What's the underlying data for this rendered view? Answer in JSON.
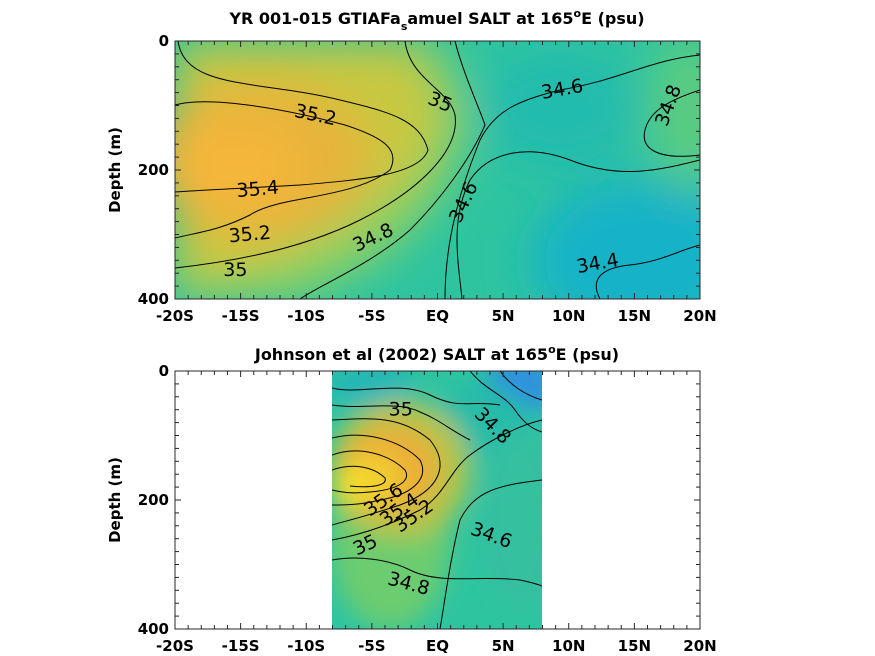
{
  "chart_data": [
    {
      "type": "contour",
      "title_main": "YR 001-015 GTIAFa",
      "title_sub": "s",
      "title_rest": "amuel SALT at 165",
      "title_sup": "o",
      "title_end": "E (psu)",
      "ylabel": "Depth (m)",
      "xlim": [
        -20,
        20
      ],
      "ylim": [
        0,
        400
      ],
      "y_reversed": true,
      "x_ticks": [
        {
          "v": -20,
          "label": "-20S"
        },
        {
          "v": -15,
          "label": "-15S"
        },
        {
          "v": -10,
          "label": "-10S"
        },
        {
          "v": -5,
          "label": "-5S"
        },
        {
          "v": 0,
          "label": "EQ"
        },
        {
          "v": 5,
          "label": "5N"
        },
        {
          "v": 10,
          "label": "10N"
        },
        {
          "v": 15,
          "label": "15N"
        },
        {
          "v": 20,
          "label": "20N"
        }
      ],
      "y_ticks": [
        {
          "v": 0,
          "label": "0"
        },
        {
          "v": 200,
          "label": "200"
        },
        {
          "v": 400,
          "label": "400"
        }
      ],
      "data_xrange": [
        -20,
        20
      ],
      "contour_labels": [
        {
          "text": "35.2",
          "x": -9.3,
          "y": 115,
          "rot": 12
        },
        {
          "text": "35",
          "x": 0.2,
          "y": 95,
          "rot": 22
        },
        {
          "text": "34.6",
          "x": 9.5,
          "y": 75,
          "rot": -10
        },
        {
          "text": "34.8",
          "x": 17.6,
          "y": 100,
          "rot": -70
        },
        {
          "text": "35.4",
          "x": -13.7,
          "y": 230,
          "rot": -5
        },
        {
          "text": "34.6",
          "x": 2,
          "y": 250,
          "rot": -65
        },
        {
          "text": "35.2",
          "x": -14.3,
          "y": 300,
          "rot": -5
        },
        {
          "text": "34.8",
          "x": -4.9,
          "y": 305,
          "rot": -25
        },
        {
          "text": "35",
          "x": -15.4,
          "y": 355,
          "rot": 0
        },
        {
          "text": "34.4",
          "x": 12.2,
          "y": 345,
          "rot": -10
        }
      ]
    },
    {
      "type": "contour",
      "title_main": "Johnson et al (2002) SALT at 165",
      "title_sup": "o",
      "title_end": "E (psu)",
      "ylabel": "Depth (m)",
      "xlim": [
        -20,
        20
      ],
      "ylim": [
        0,
        400
      ],
      "y_reversed": true,
      "x_ticks": [
        {
          "v": -20,
          "label": "-20S"
        },
        {
          "v": -15,
          "label": "-15S"
        },
        {
          "v": -10,
          "label": "-10S"
        },
        {
          "v": -5,
          "label": "-5S"
        },
        {
          "v": 0,
          "label": "EQ"
        },
        {
          "v": 5,
          "label": "5N"
        },
        {
          "v": 10,
          "label": "10N"
        },
        {
          "v": 15,
          "label": "15N"
        },
        {
          "v": 20,
          "label": "20N"
        }
      ],
      "y_ticks": [
        {
          "v": 0,
          "label": "0"
        },
        {
          "v": 200,
          "label": "200"
        },
        {
          "v": 400,
          "label": "400"
        }
      ],
      "data_xrange": [
        -8,
        8
      ],
      "contour_labels": [
        {
          "text": "35",
          "x": -2.8,
          "y": 60,
          "rot": 0
        },
        {
          "text": "34.8",
          "x": 4.2,
          "y": 85,
          "rot": 45
        },
        {
          "text": "35.6",
          "x": -4.1,
          "y": 200,
          "rot": -35
        },
        {
          "text": "35.4",
          "x": -2.9,
          "y": 215,
          "rot": -35
        },
        {
          "text": "35.2",
          "x": -1.8,
          "y": 225,
          "rot": -35
        },
        {
          "text": "34.6",
          "x": 4.1,
          "y": 255,
          "rot": 20
        },
        {
          "text": "35",
          "x": -5.5,
          "y": 270,
          "rot": -25
        },
        {
          "text": "34.8",
          "x": -2.2,
          "y": 330,
          "rot": 15
        }
      ]
    }
  ]
}
